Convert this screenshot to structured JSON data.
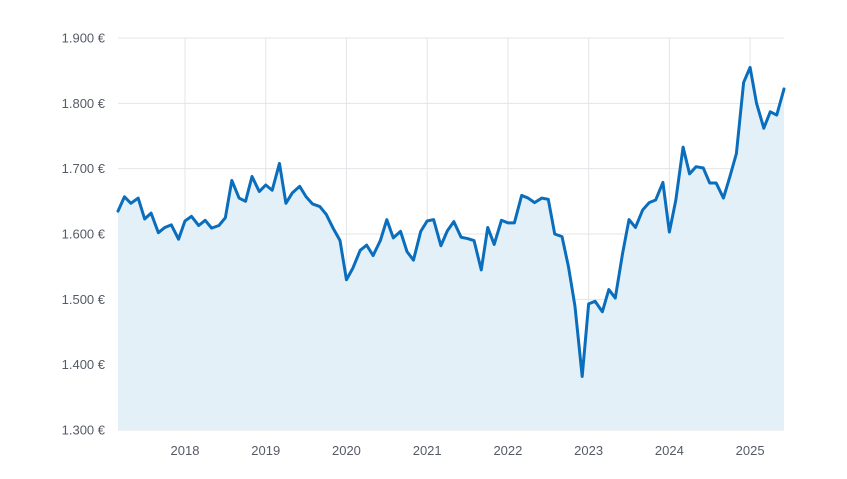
{
  "chart_data": {
    "type": "area",
    "title": "",
    "xlabel": "",
    "ylabel": "",
    "y_ticks": [
      "1.300 €",
      "1.400 €",
      "1.500 €",
      "1.600 €",
      "1.700 €",
      "1.800 €",
      "1.900 €"
    ],
    "y_tick_values": [
      1300,
      1400,
      1500,
      1600,
      1700,
      1800,
      1900
    ],
    "x_ticks": [
      "2018",
      "2019",
      "2020",
      "2021",
      "2022",
      "2023",
      "2024",
      "2025"
    ],
    "x_tick_values": [
      2018.0,
      2019.0,
      2020.0,
      2021.0,
      2022.0,
      2023.0,
      2024.0,
      2025.0
    ],
    "xlim": [
      2017.17,
      2025.42
    ],
    "ylim": [
      1300,
      1900
    ],
    "grid": true,
    "colors": {
      "line": "#0a6ebd",
      "fill": "#e4f0f8",
      "grid": "#e3e5e8",
      "axis_text": "#555b66"
    },
    "series": [
      {
        "x": [
          2017.17,
          2017.25,
          2017.33,
          2017.42,
          2017.5,
          2017.58,
          2017.67,
          2017.75,
          2017.83,
          2017.92,
          2018.0,
          2018.08,
          2018.17,
          2018.25,
          2018.33,
          2018.42,
          2018.5,
          2018.58,
          2018.67,
          2018.75,
          2018.83,
          2018.92,
          2019.0,
          2019.08,
          2019.17,
          2019.25,
          2019.33,
          2019.42,
          2019.5,
          2019.58,
          2019.67,
          2019.75,
          2019.83,
          2019.92,
          2020.0,
          2020.08,
          2020.17,
          2020.25,
          2020.33,
          2020.42,
          2020.5,
          2020.58,
          2020.67,
          2020.75,
          2020.83,
          2020.92,
          2021.0,
          2021.08,
          2021.17,
          2021.25,
          2021.33,
          2021.42,
          2021.5,
          2021.58,
          2021.67,
          2021.75,
          2021.83,
          2021.92,
          2022.0,
          2022.08,
          2022.17,
          2022.25,
          2022.33,
          2022.42,
          2022.5,
          2022.58,
          2022.67,
          2022.75,
          2022.83,
          2022.92,
          2023.0,
          2023.08,
          2023.17,
          2023.25,
          2023.33,
          2023.42,
          2023.5,
          2023.58,
          2023.67,
          2023.75,
          2023.83,
          2023.92,
          2024.0,
          2024.08,
          2024.17,
          2024.25,
          2024.33,
          2024.42,
          2024.5,
          2024.58,
          2024.67,
          2024.75,
          2024.83,
          2024.92,
          2025.0,
          2025.08,
          2025.17,
          2025.25,
          2025.33,
          2025.42
        ],
        "values": [
          1635,
          1657,
          1647,
          1655,
          1623,
          1632,
          1602,
          1610,
          1614,
          1592,
          1620,
          1627,
          1613,
          1621,
          1609,
          1613,
          1625,
          1682,
          1655,
          1650,
          1688,
          1665,
          1675,
          1667,
          1708,
          1647,
          1663,
          1673,
          1657,
          1646,
          1642,
          1630,
          1610,
          1590,
          1530,
          1548,
          1575,
          1583,
          1567,
          1590,
          1622,
          1594,
          1604,
          1573,
          1560,
          1604,
          1620,
          1622,
          1582,
          1605,
          1619,
          1595,
          1593,
          1590,
          1545,
          1610,
          1584,
          1621,
          1617,
          1617,
          1659,
          1655,
          1648,
          1655,
          1653,
          1600,
          1596,
          1550,
          1490,
          1382,
          1493,
          1497,
          1481,
          1515,
          1502,
          1570,
          1622,
          1610,
          1637,
          1648,
          1652,
          1679,
          1603,
          1652,
          1733,
          1692,
          1703,
          1701,
          1678,
          1678,
          1655,
          1688,
          1723,
          1832,
          1855,
          1800,
          1762,
          1787,
          1782,
          1822
        ]
      }
    ]
  }
}
